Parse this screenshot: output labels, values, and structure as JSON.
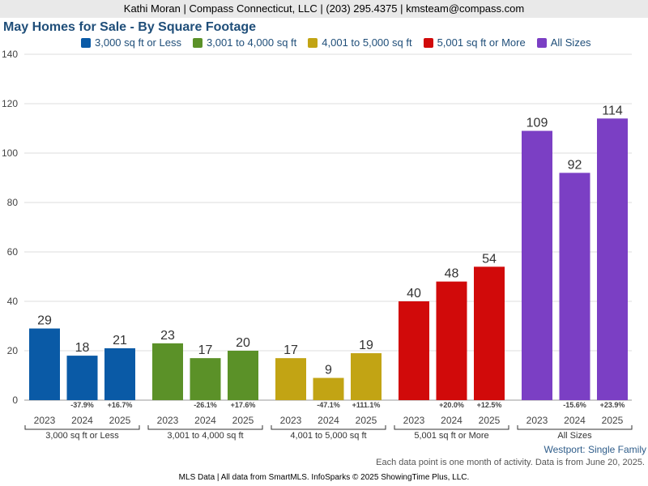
{
  "banner": "Kathi Moran | Compass Connecticut, LLC | (203) 295.4375 | kmsteam@compass.com",
  "footer": {
    "region": "Westport: Single Family",
    "note": "Each data point is one month of activity. Data is from June 20, 2025.",
    "credit": "MLS Data | All data from SmartMLS. InfoSparks © 2025 ShowingTime Plus, LLC."
  },
  "chart_data": {
    "type": "bar",
    "title": "May Homes for Sale - By Square Footage",
    "ylim": [
      0,
      140
    ],
    "yticks": [
      "0",
      "20",
      "40",
      "60",
      "80",
      "100",
      "120",
      "140"
    ],
    "grid": true,
    "legend_position": "top",
    "years": [
      "2023",
      "2024",
      "2025"
    ],
    "groups": [
      {
        "name": "3,000 sq ft or Less",
        "color": "#0a5aa6",
        "values": [
          29,
          18,
          21
        ],
        "changes": [
          "",
          "-37.9%",
          "+16.7%"
        ]
      },
      {
        "name": "3,001 to 4,000 sq ft",
        "color": "#5b9128",
        "values": [
          23,
          17,
          20
        ],
        "changes": [
          "",
          "-26.1%",
          "+17.6%"
        ]
      },
      {
        "name": "4,001 to 5,000 sq ft",
        "color": "#c2a414",
        "values": [
          17,
          9,
          19
        ],
        "changes": [
          "",
          "-47.1%",
          "+111.1%"
        ]
      },
      {
        "name": "5,001 sq ft or More",
        "color": "#d10a0a",
        "values": [
          40,
          48,
          54
        ],
        "changes": [
          "",
          "+20.0%",
          "+12.5%"
        ]
      },
      {
        "name": "All Sizes",
        "color": "#7b3fc4",
        "values": [
          109,
          92,
          114
        ],
        "changes": [
          "",
          "-15.6%",
          "+23.9%"
        ]
      }
    ]
  }
}
